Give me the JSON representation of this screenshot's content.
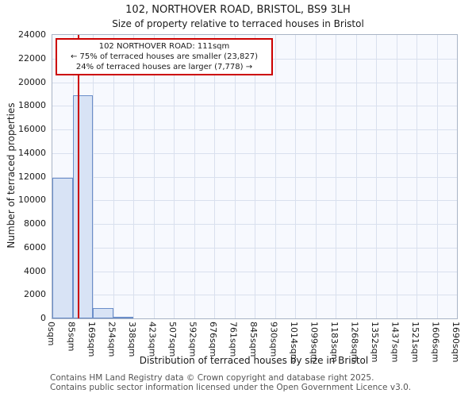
{
  "chart_data": {
    "type": "bar",
    "title": "102, NORTHOVER ROAD, BRISTOL, BS9 3LH",
    "subtitle": "Size of property relative to terraced houses in Bristol",
    "xlabel": "Distribution of terraced houses by size in Bristol",
    "ylabel": "Number of terraced properties",
    "x_tick_labels": [
      "0sqm",
      "85sqm",
      "169sqm",
      "254sqm",
      "338sqm",
      "423sqm",
      "507sqm",
      "592sqm",
      "676sqm",
      "761sqm",
      "845sqm",
      "930sqm",
      "1014sqm",
      "1099sqm",
      "1183sqm",
      "1268sqm",
      "1352sqm",
      "1437sqm",
      "1521sqm",
      "1606sqm",
      "1690sqm"
    ],
    "bin_edges_sqm": [
      0,
      85,
      169,
      254,
      338,
      423,
      507,
      592,
      676,
      761,
      845,
      930,
      1014,
      1099,
      1183,
      1268,
      1352,
      1437,
      1521,
      1606,
      1690
    ],
    "values": [
      11900,
      18900,
      900,
      150,
      0,
      0,
      0,
      0,
      0,
      0,
      0,
      0,
      0,
      0,
      0,
      0,
      0,
      0,
      0,
      0
    ],
    "ylim": [
      0,
      24000
    ],
    "y_tick_step": 2000,
    "marker_value_sqm": 111,
    "grid": true,
    "legend": "none",
    "bar_fill": "#d8e3f5",
    "bar_border": "#6b8ec9",
    "marker_color": "#cc0000"
  },
  "annotation": {
    "line1": "102 NORTHOVER ROAD: 111sqm",
    "line2": "← 75% of terraced houses are smaller (23,827)",
    "line3": "24% of terraced houses are larger (7,778) →"
  },
  "footer": {
    "line1": "Contains HM Land Registry data © Crown copyright and database right 2025.",
    "line2": "Contains public sector information licensed under the Open Government Licence v3.0."
  }
}
